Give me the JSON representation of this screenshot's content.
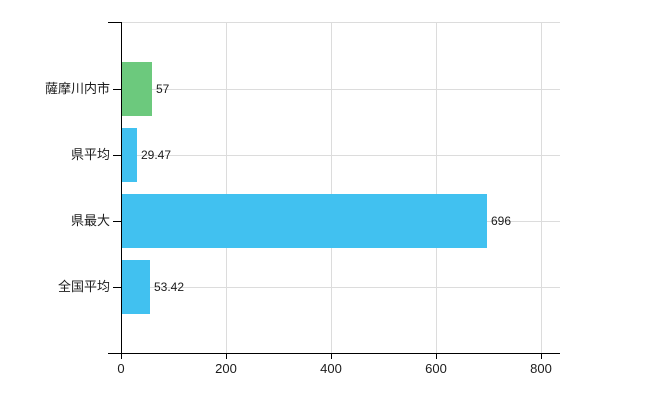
{
  "chart": {
    "background_color": "#ffffff",
    "axis_color": "#000000",
    "gridline_color": "#dcdcdc",
    "text_color": "#1c1c1c"
  },
  "chart_data": {
    "type": "bar",
    "orientation": "horizontal",
    "title": "",
    "xlabel": "",
    "ylabel": "",
    "categories": [
      "薩摩川内市",
      "県平均",
      "県最大",
      "全国平均"
    ],
    "values": [
      57,
      29.47,
      696,
      53.42
    ],
    "value_labels": [
      "57",
      "29.47",
      "696",
      "53.42"
    ],
    "bar_colors": [
      "#6cc97d",
      "#41c1f0",
      "#41c1f0",
      "#41c1f0"
    ],
    "x_ticks": [
      0,
      200,
      400,
      600,
      800
    ],
    "x_tick_labels": [
      "0",
      "200",
      "400",
      "600",
      "800"
    ],
    "xlim": [
      0,
      800
    ],
    "grid": true,
    "legend": false
  }
}
